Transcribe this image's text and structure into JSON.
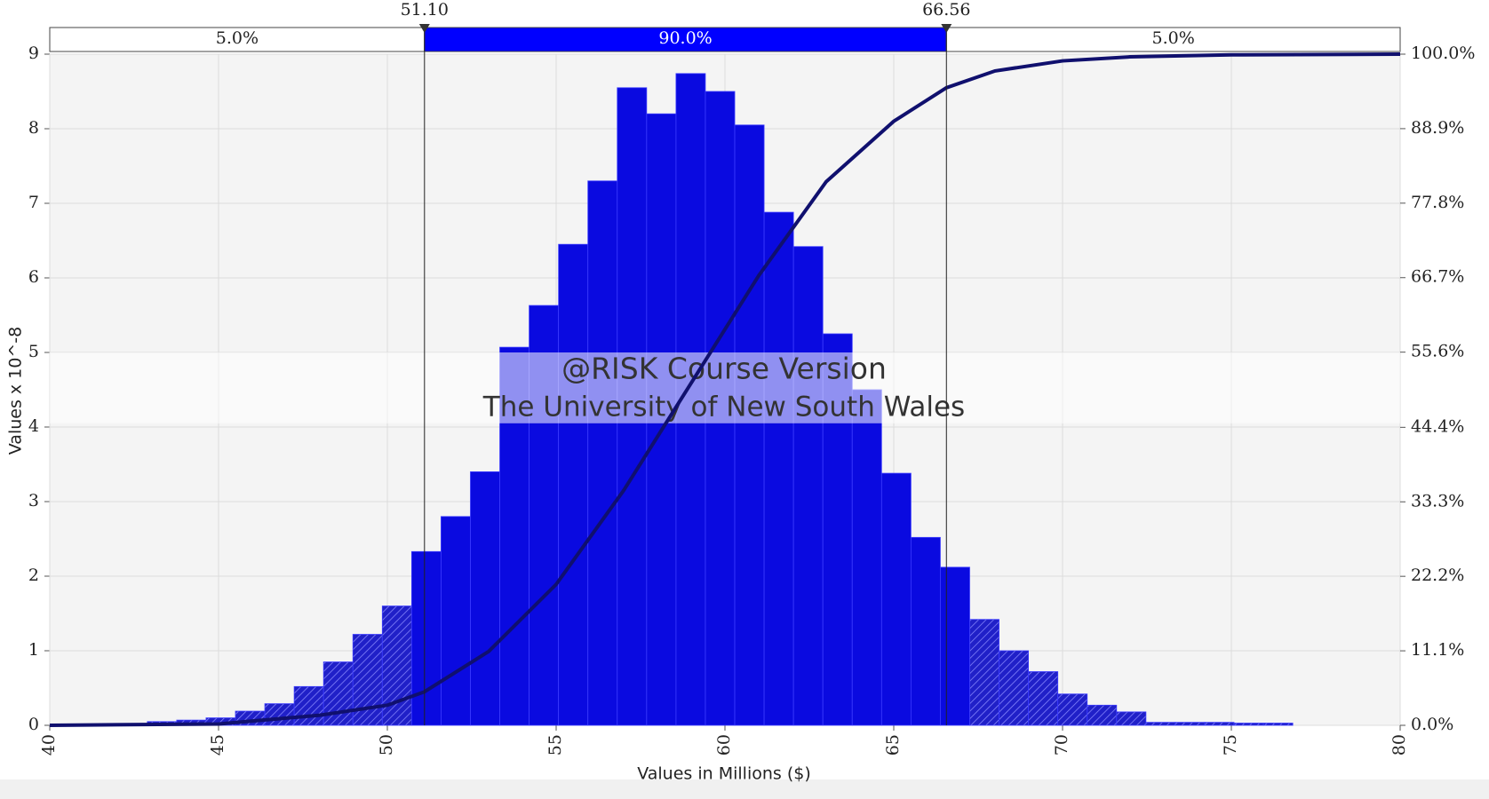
{
  "chart_data": {
    "type": "histogram",
    "x_label": "Values in Millions ($)",
    "y_label": "Values x 10^-8",
    "watermark": [
      "@RISK Course Version",
      "The University of New South Wales"
    ],
    "bins": [
      42.89,
      43.76,
      44.63,
      45.5,
      46.37,
      47.24,
      48.11,
      48.98,
      49.85,
      50.72,
      51.59,
      52.46,
      53.33,
      54.2,
      55.07,
      55.94,
      56.81,
      57.68,
      58.55,
      59.42,
      60.29,
      61.16,
      62.03,
      62.9,
      63.77,
      64.64,
      65.51,
      66.38,
      67.25,
      68.12,
      68.99,
      69.86,
      70.73,
      71.6,
      72.47,
      73.34,
      74.21,
      75.08,
      75.95,
      76.82
    ],
    "values": [
      0.05,
      0.07,
      0.1,
      0.19,
      0.29,
      0.52,
      0.85,
      1.22,
      1.6,
      2.33,
      2.8,
      3.4,
      5.07,
      5.63,
      6.45,
      7.3,
      8.55,
      8.2,
      8.74,
      8.5,
      8.05,
      6.88,
      6.42,
      5.25,
      4.5,
      3.38,
      2.52,
      2.12,
      1.42,
      1.0,
      0.72,
      0.42,
      0.27,
      0.18,
      0.04,
      0.04,
      0.04,
      0.03,
      0.03
    ],
    "color": "#0a0ae0",
    "cumulative": {
      "x": [
        40,
        45,
        48,
        50,
        51.1,
        53,
        55,
        57,
        59,
        61,
        63,
        65,
        66.56,
        68,
        70,
        72,
        75,
        80
      ],
      "values": [
        0,
        0.2,
        1.5,
        3,
        5,
        11,
        21,
        35,
        51,
        67,
        81,
        90,
        95,
        97.5,
        99,
        99.6,
        99.9,
        100
      ],
      "color": "#10106e",
      "axis": "y2"
    },
    "delimiters": [
      {
        "value": 51.1,
        "label": "51.10"
      },
      {
        "value": 66.56,
        "label": "66.56"
      }
    ],
    "bands": [
      {
        "value": 5,
        "label": "5.0%"
      },
      {
        "value": 90,
        "label": "90.0%"
      },
      {
        "value": 5,
        "label": "5.0%"
      }
    ],
    "band_color": "#0000ff",
    "xlim": [
      40,
      80
    ],
    "xticks": [
      40,
      45,
      50,
      55,
      60,
      65,
      70,
      75,
      80
    ],
    "ylim": [
      0,
      9
    ],
    "yticks": [
      0,
      1,
      2,
      3,
      4,
      5,
      6,
      7,
      8,
      9
    ],
    "y2lim": [
      0,
      100
    ],
    "y2ticks": [
      {
        "value": 0,
        "label": "0.0%"
      },
      {
        "value": 11.1,
        "label": "11.1%"
      },
      {
        "value": 22.2,
        "label": "22.2%"
      },
      {
        "value": 33.3,
        "label": "33.3%"
      },
      {
        "value": 44.4,
        "label": "44.4%"
      },
      {
        "value": 55.6,
        "label": "55.6%"
      },
      {
        "value": 66.7,
        "label": "66.7%"
      },
      {
        "value": 77.8,
        "label": "77.8%"
      },
      {
        "value": 88.9,
        "label": "88.9%"
      },
      {
        "value": 100,
        "label": "100.0%"
      }
    ],
    "grid": true
  }
}
